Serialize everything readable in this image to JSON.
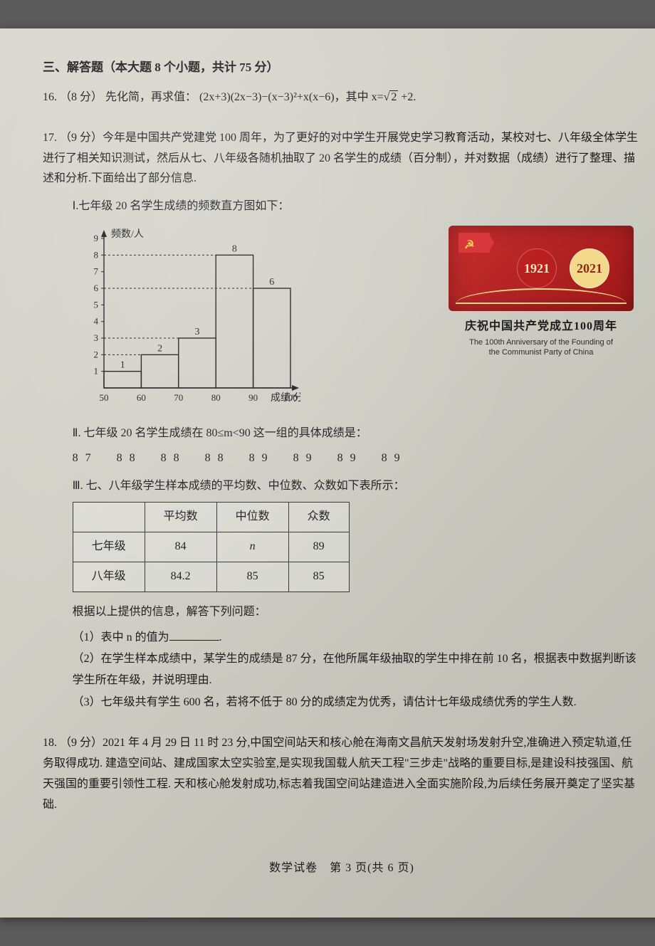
{
  "section": {
    "title": "三、解答题（本大题 8 个小题，共计 75 分）"
  },
  "q16": {
    "number": "16.",
    "points": "（8 分）",
    "lead": "先化简，再求值：",
    "expr": "(2x+3)(2x−3)−(x−3)²+x(x−6)，其中 x=",
    "sqrt": "2",
    "tail": " +2."
  },
  "q17": {
    "number": "17.",
    "points": "（9 分）",
    "para": "今年是中国共产党建党 100 周年，为了更好的对中学生开展党史学习教育活动，某校对七、八年级全体学生进行了相关知识测试，然后从七、八年级各随机抽取了 20 名学生的成绩（百分制），并对数据（成绩）进行了整理、描述和分析.下面给出了部分信息.",
    "I": "Ⅰ.七年级 20 名学生成绩的频数直方图如下：",
    "chart": {
      "type": "histogram",
      "y_label": "频数/人",
      "x_label": "成绩/分",
      "x_ticks": [
        50,
        60,
        70,
        80,
        90,
        100
      ],
      "y_ticks": [
        1,
        2,
        3,
        4,
        5,
        6,
        7,
        8,
        9
      ],
      "y_max": 9,
      "bars": [
        {
          "x0": 50,
          "x1": 60,
          "h": 1,
          "label": "1"
        },
        {
          "x0": 60,
          "x1": 70,
          "h": 2,
          "label": "2"
        },
        {
          "x0": 70,
          "x1": 80,
          "h": 3,
          "label": "3"
        },
        {
          "x0": 80,
          "x1": 90,
          "h": 8,
          "label": "8"
        },
        {
          "x0": 90,
          "x1": 100,
          "h": 6,
          "label": "6"
        }
      ],
      "bar_fill": "none",
      "bar_stroke": "#1a1a1a",
      "axis_color": "#1a1a1a",
      "tick_fontsize": 13,
      "barlabel_fontsize": 14
    },
    "badge": {
      "left_year": "1921",
      "right_year": "2021",
      "title": "庆祝中国共产党成立100周年",
      "sub1": "The 100th Anniversary of the Founding of",
      "sub2": "the Communist Party of China"
    },
    "II": "Ⅱ. 七年级 20 名学生成绩在 80≤m<90 这一组的具体成绩是：",
    "scores": "87　88　88　88　89　89　89　89",
    "III": "Ⅲ. 七、八年级学生样本成绩的平均数、中位数、众数如下表所示：",
    "table": {
      "columns": [
        "",
        "平均数",
        "中位数",
        "众数"
      ],
      "rows": [
        [
          "七年级",
          "84",
          "n",
          "89"
        ],
        [
          "八年级",
          "84.2",
          "85",
          "85"
        ]
      ]
    },
    "prompt": "根据以上提供的信息，解答下列问题：",
    "sub1_label": "（1）表中 n 的值为",
    "sub1_tail": ".",
    "sub2": "（2）在学生样本成绩中，某学生的成绩是 87 分，在他所属年级抽取的学生中排在前 10 名，根据表中数据判断该学生所在年级，并说明理由.",
    "sub3": "（3）七年级共有学生 600 名，若将不低于 80 分的成绩定为优秀，请估计七年级成绩优秀的学生人数."
  },
  "q18": {
    "number": "18.",
    "points": "（9 分）",
    "para": "2021 年 4 月 29 日 11 时 23 分,中国空间站天和核心舱在海南文昌航天发射场发射升空,准确进入预定轨道,任务取得成功. 建造空间站、建成国家太空实验室,是实现我国载人航天工程\"三步走\"战略的重要目标,是建设科技强国、航天强国的重要引领性工程. 天和核心舱发射成功,标志着我国空间站建造进入全面实施阶段,为后续任务展开奠定了坚实基础."
  },
  "footer": "数学试卷　第 3 页(共 6 页)"
}
